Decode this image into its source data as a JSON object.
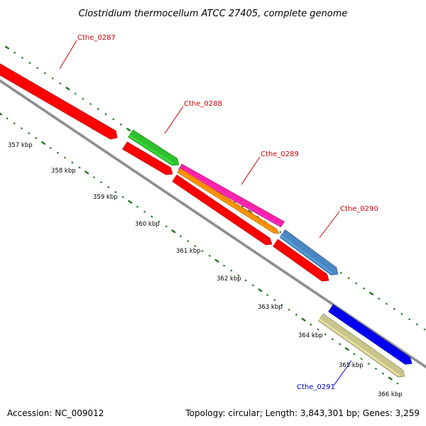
{
  "title": "Clostridium thermocellum ATCC 27405, complete genome",
  "footer": {
    "accession": "Accession: NC_009012",
    "summary": "Topology: circular; Length: 3,843,301 bp; Genes: 3,259"
  },
  "ticks": [
    "357 kbp",
    "358 kbp",
    "359 kbp",
    "360 kbp",
    "361 kbp",
    "362 kbp",
    "363 kbp",
    "364 kbp",
    "365 kbp",
    "366 kbp"
  ],
  "gene_labels": [
    "Cthe_0287",
    "Cthe_0288",
    "Cthe_0289",
    "Cthe_0290",
    "Cthe_0291"
  ],
  "colors": {
    "backbone": "#8a8a8a",
    "tick_marks": "#1a7a1a",
    "label_red": "#d40000",
    "label_blue": "#0000cc",
    "cds_red": "#ff0000",
    "green": "#2ec02e",
    "magenta": "#ff22aa",
    "orange": "#ff8c00",
    "steel_blue": "#4a86c0",
    "blue": "#0000ee",
    "khaki": "#c8c48a"
  },
  "features": [
    {
      "track": "outer",
      "color": "cds_red",
      "start": 0,
      "end": 1
    },
    {
      "track": "outer",
      "color": "green",
      "start": 0,
      "end": 1
    },
    {
      "track": "outer",
      "color": "magenta",
      "start": 0,
      "end": 1
    },
    {
      "track": "outer",
      "color": "steel_blue",
      "start": 0,
      "end": 1
    },
    {
      "track": "inner",
      "color": "cds_red",
      "start": 0,
      "end": 1
    },
    {
      "track": "inner",
      "color": "orange",
      "start": 0,
      "end": 1
    },
    {
      "track": "inner",
      "color": "cds_red",
      "start": 0,
      "end": 1
    },
    {
      "track": "inner",
      "color": "cds_red",
      "start": 0,
      "end": 1
    },
    {
      "track": "outer",
      "color": "blue",
      "start": 0,
      "end": 1
    },
    {
      "track": "inner",
      "color": "khaki",
      "start": 0,
      "end": 1
    }
  ]
}
